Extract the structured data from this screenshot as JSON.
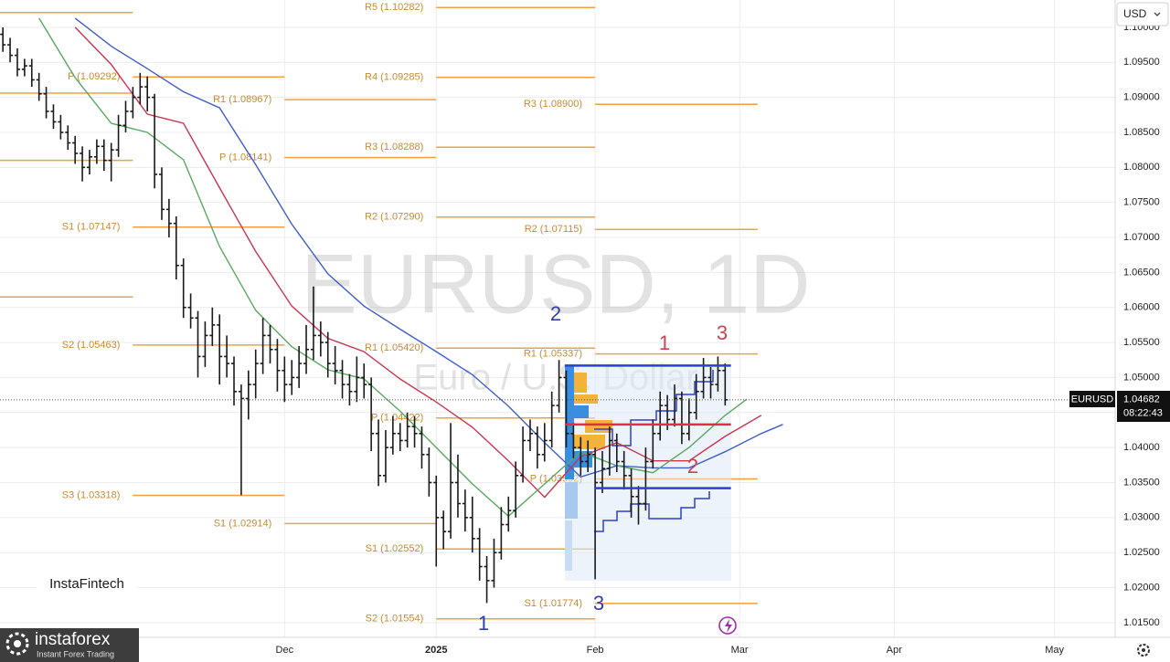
{
  "chart_data": {
    "type": "ohlc",
    "title": "EURUSD, 1D",
    "subtitle": "Euro / U.S. Dollar",
    "currency": "USD",
    "bar_color": "#1a1a1a",
    "grid": true,
    "xlim": [
      -0.4,
      154
    ],
    "xticks": [
      {
        "value": 39,
        "label": "Dec"
      },
      {
        "value": 60,
        "label": "2025"
      },
      {
        "value": 82,
        "label": "Feb"
      },
      {
        "value": 102,
        "label": "Mar"
      },
      {
        "value": 123.4,
        "label": "Apr"
      },
      {
        "value": 145.6,
        "label": "May"
      }
    ],
    "ylim": [
      1.0129,
      1.1039
    ],
    "yticks": [
      {
        "value": 1.015,
        "label": "1.01500"
      },
      {
        "value": 1.02,
        "label": "1.02000"
      },
      {
        "value": 1.025,
        "label": "1.02500"
      },
      {
        "value": 1.03,
        "label": "1.03000"
      },
      {
        "value": 1.035,
        "label": "1.03500"
      },
      {
        "value": 1.04,
        "label": "1.04000"
      },
      {
        "value": 1.045,
        "label": "1.04500"
      },
      {
        "value": 1.05,
        "label": "1.05000"
      },
      {
        "value": 1.055,
        "label": "1.05500"
      },
      {
        "value": 1.06,
        "label": "1.06000"
      },
      {
        "value": 1.065,
        "label": "1.06500"
      },
      {
        "value": 1.07,
        "label": "1.07000"
      },
      {
        "value": 1.075,
        "label": "1.07500"
      },
      {
        "value": 1.08,
        "label": "1.08000"
      },
      {
        "value": 1.085,
        "label": "1.08500"
      },
      {
        "value": 1.09,
        "label": "1.09000"
      },
      {
        "value": 1.095,
        "label": "1.09500"
      },
      {
        "value": 1.1,
        "label": "1.10000"
      }
    ],
    "bars": [
      [
        1.099,
        1.1,
        1.0965,
        1.0975
      ],
      [
        1.0975,
        1.0985,
        1.095,
        1.096
      ],
      [
        1.096,
        1.097,
        1.093,
        1.094
      ],
      [
        1.094,
        1.0955,
        1.093,
        1.0945
      ],
      [
        1.0945,
        1.0955,
        1.0915,
        1.0925
      ],
      [
        1.0925,
        1.0935,
        1.0895,
        1.0905
      ],
      [
        1.0905,
        1.0915,
        1.087,
        1.088
      ],
      [
        1.088,
        1.089,
        1.0855,
        1.0865
      ],
      [
        1.0865,
        1.0875,
        1.084,
        1.085
      ],
      [
        1.085,
        1.086,
        1.0825,
        1.0835
      ],
      [
        1.0835,
        1.0845,
        1.0805,
        1.082
      ],
      [
        1.082,
        1.083,
        1.078,
        1.08
      ],
      [
        1.08,
        1.0825,
        1.079,
        1.0815
      ],
      [
        1.0815,
        1.084,
        1.0805,
        1.083
      ],
      [
        1.083,
        1.084,
        1.0795,
        1.081
      ],
      [
        1.081,
        1.0835,
        1.078,
        1.0825
      ],
      [
        1.0825,
        1.0875,
        1.0815,
        1.086
      ],
      [
        1.086,
        1.0895,
        1.085,
        1.088
      ],
      [
        1.088,
        1.0915,
        1.087,
        1.09
      ],
      [
        1.09,
        1.0935,
        1.089,
        1.0915
      ],
      [
        1.0915,
        1.093,
        1.088,
        1.09
      ],
      [
        1.09,
        1.0905,
        1.077,
        1.079
      ],
      [
        1.079,
        1.08,
        1.0725,
        1.074
      ],
      [
        1.074,
        1.0755,
        1.07,
        1.072
      ],
      [
        1.072,
        1.073,
        1.064,
        1.066
      ],
      [
        1.066,
        1.067,
        1.0585,
        1.06
      ],
      [
        1.06,
        1.062,
        1.057,
        1.0585
      ],
      [
        1.0585,
        1.0595,
        1.05,
        1.053
      ],
      [
        1.053,
        1.058,
        1.0515,
        1.056
      ],
      [
        1.056,
        1.06,
        1.0545,
        1.0575
      ],
      [
        1.0575,
        1.059,
        1.049,
        1.053
      ],
      [
        1.053,
        1.056,
        1.05,
        1.052
      ],
      [
        1.052,
        1.053,
        1.046,
        1.048
      ],
      [
        1.048,
        1.049,
        1.0332,
        1.047
      ],
      [
        1.047,
        1.051,
        1.044,
        1.049
      ],
      [
        1.049,
        1.054,
        1.047,
        1.052
      ],
      [
        1.052,
        1.0585,
        1.0505,
        1.056
      ],
      [
        1.056,
        1.0575,
        1.052,
        1.054
      ],
      [
        1.054,
        1.0555,
        1.048,
        1.051
      ],
      [
        1.051,
        1.053,
        1.0465,
        1.049
      ],
      [
        1.049,
        1.0525,
        1.0475,
        1.05
      ],
      [
        1.05,
        1.0545,
        1.0485,
        1.052
      ],
      [
        1.052,
        1.0575,
        1.0505,
        1.054
      ],
      [
        1.054,
        1.063,
        1.0525,
        1.056
      ],
      [
        1.056,
        1.058,
        1.053,
        1.055
      ],
      [
        1.055,
        1.0565,
        1.05,
        1.052
      ],
      [
        1.052,
        1.0545,
        1.049,
        1.051
      ],
      [
        1.051,
        1.0525,
        1.047,
        1.049
      ],
      [
        1.049,
        1.0505,
        1.046,
        1.048
      ],
      [
        1.048,
        1.053,
        1.0465,
        1.05
      ],
      [
        1.05,
        1.052,
        1.047,
        1.049
      ],
      [
        1.049,
        1.05,
        1.0395,
        1.042
      ],
      [
        1.042,
        1.044,
        1.0345,
        1.036
      ],
      [
        1.036,
        1.0425,
        1.035,
        1.04
      ],
      [
        1.04,
        1.0445,
        1.039,
        1.042
      ],
      [
        1.042,
        1.0435,
        1.0395,
        1.041
      ],
      [
        1.041,
        1.045,
        1.04,
        1.043
      ],
      [
        1.043,
        1.0445,
        1.04,
        1.042
      ],
      [
        1.042,
        1.043,
        1.037,
        1.039
      ],
      [
        1.039,
        1.04,
        1.033,
        1.035
      ],
      [
        1.035,
        1.036,
        1.023,
        1.03
      ],
      [
        1.03,
        1.031,
        1.0255,
        1.028
      ],
      [
        1.028,
        1.0435,
        1.027,
        1.035
      ],
      [
        1.035,
        1.039,
        1.03,
        1.032
      ],
      [
        1.032,
        1.034,
        1.028,
        1.03
      ],
      [
        1.03,
        1.033,
        1.025,
        1.027
      ],
      [
        1.027,
        1.0285,
        1.021,
        1.023
      ],
      [
        1.023,
        1.0245,
        1.0178,
        1.021
      ],
      [
        1.021,
        1.027,
        1.02,
        1.025
      ],
      [
        1.025,
        1.0315,
        1.024,
        1.029
      ],
      [
        1.029,
        1.033,
        1.028,
        1.031
      ],
      [
        1.031,
        1.038,
        1.03,
        1.036
      ],
      [
        1.036,
        1.043,
        1.035,
        1.041
      ],
      [
        1.041,
        1.044,
        1.0395,
        1.042
      ],
      [
        1.042,
        1.043,
        1.037,
        1.039
      ],
      [
        1.039,
        1.0435,
        1.038,
        1.041
      ],
      [
        1.041,
        1.048,
        1.04,
        1.046
      ],
      [
        1.046,
        1.0525,
        1.045,
        1.05
      ],
      [
        1.05,
        1.051,
        1.04,
        1.042
      ],
      [
        1.042,
        1.0435,
        1.0385,
        1.04
      ],
      [
        1.04,
        1.0415,
        1.036,
        1.038
      ],
      [
        1.038,
        1.041,
        1.0365,
        1.039
      ],
      [
        1.039,
        1.04,
        1.0212,
        1.035
      ],
      [
        1.035,
        1.0395,
        1.0335,
        1.037
      ],
      [
        1.037,
        1.043,
        1.036,
        1.041
      ],
      [
        1.041,
        1.042,
        1.0365,
        1.038
      ],
      [
        1.038,
        1.0395,
        1.034,
        1.036
      ],
      [
        1.036,
        1.037,
        1.03,
        1.033
      ],
      [
        1.033,
        1.0345,
        1.029,
        1.032
      ],
      [
        1.032,
        1.04,
        1.031,
        1.038
      ],
      [
        1.038,
        1.044,
        1.037,
        1.042
      ],
      [
        1.042,
        1.048,
        1.041,
        1.046
      ],
      [
        1.046,
        1.0475,
        1.0425,
        1.044
      ],
      [
        1.044,
        1.049,
        1.043,
        1.047
      ],
      [
        1.047,
        1.048,
        1.0405,
        1.042
      ],
      [
        1.042,
        1.047,
        1.041,
        1.045
      ],
      [
        1.045,
        1.0505,
        1.044,
        1.048
      ],
      [
        1.048,
        1.0528,
        1.047,
        1.05
      ],
      [
        1.05,
        1.0515,
        1.047,
        1.049
      ],
      [
        1.049,
        1.053,
        1.048,
        1.051
      ],
      [
        1.051,
        1.052,
        1.046,
        1.04682
      ]
    ],
    "moving_averages": [
      {
        "color": "#3f5fc8",
        "x": [
          10,
          15,
          20,
          25,
          30,
          35,
          40,
          45,
          50,
          55,
          60,
          65,
          70,
          75,
          80,
          85,
          90,
          95,
          100,
          105,
          108
        ],
        "values": [
          1.1013,
          1.0973,
          1.0941,
          1.0908,
          1.0885,
          1.0804,
          1.0719,
          1.0648,
          1.0602,
          1.0569,
          1.0537,
          1.0504,
          1.0459,
          1.0407,
          1.0358,
          1.0374,
          1.0371,
          1.0371,
          1.0394,
          1.042,
          1.0433
        ]
      },
      {
        "color": "#c8364f",
        "x": [
          10,
          15,
          20,
          25,
          30,
          35,
          40,
          45,
          50,
          55,
          60,
          65,
          70,
          75,
          80,
          85,
          90,
          95,
          100,
          105
        ],
        "values": [
          1.1,
          1.0947,
          1.0876,
          1.0863,
          1.0771,
          1.068,
          1.0602,
          1.0556,
          1.0537,
          1.0498,
          1.0465,
          1.0429,
          1.0381,
          1.0329,
          1.0387,
          1.0407,
          1.0381,
          1.0381,
          1.0416,
          1.0446
        ]
      },
      {
        "color": "#5aa860",
        "x": [
          5,
          10,
          15,
          20,
          25,
          30,
          35,
          40,
          45,
          50,
          55,
          60,
          65,
          70,
          75,
          80,
          85,
          90,
          95,
          100,
          103
        ],
        "values": [
          1.1013,
          1.0928,
          1.0863,
          1.085,
          1.0811,
          1.0687,
          1.0596,
          1.0544,
          1.0511,
          1.0498,
          1.0452,
          1.04,
          1.0348,
          1.0302,
          1.0348,
          1.0394,
          1.0374,
          1.0364,
          1.04,
          1.0446,
          1.0469
        ]
      }
    ],
    "pivot_color": "#f0a040",
    "pivot_text_color": "#c98a2e",
    "pivots": [
      {
        "x": [
          -0.4,
          18
        ],
        "levels": [
          {
            "value": 1.1021
          },
          {
            "value": 1.0906
          },
          {
            "value": 1.081
          },
          {
            "value": 1.0615
          }
        ]
      },
      {
        "x": [
          18,
          39
        ],
        "levels": [
          {
            "value": 1.09292,
            "label": "P (1.09292)"
          },
          {
            "value": 1.07147,
            "label": "S1 (1.07147)"
          },
          {
            "value": 1.05463,
            "label": "S2 (1.05463)"
          },
          {
            "value": 1.03318,
            "label": "S3 (1.03318)"
          }
        ]
      },
      {
        "x": [
          39,
          60
        ],
        "levels": [
          {
            "value": 1.08967,
            "label": "R1 (1.08967)"
          },
          {
            "value": 1.08141,
            "label": "P (1.08141)"
          },
          {
            "value": 1.02914,
            "label": "S1 (1.02914)"
          }
        ]
      },
      {
        "x": [
          60,
          82
        ],
        "levels": [
          {
            "value": 1.10282,
            "label": "R5 (1.10282)"
          },
          {
            "value": 1.09285,
            "label": "R4 (1.09285)"
          },
          {
            "value": 1.08288,
            "label": "R3 (1.08288)"
          },
          {
            "value": 1.0729,
            "label": "R2 (1.07290)"
          },
          {
            "value": 1.0542,
            "label": "R1 (1.05420)"
          },
          {
            "value": 1.04422,
            "label": "P (1.04422)"
          },
          {
            "value": 1.02552,
            "label": "S1 (1.02552)"
          },
          {
            "value": 1.01554,
            "label": "S2 (1.01554)"
          }
        ]
      },
      {
        "x": [
          82,
          104.5
        ],
        "levels": [
          {
            "value": 1.089,
            "label": "R3 (1.08900)"
          },
          {
            "value": 1.07115,
            "label": "R2 (1.07115)"
          },
          {
            "value": 1.05337,
            "label": "R1 (1.05337)"
          },
          {
            "value": 1.03552,
            "label": "P (1.03552)"
          },
          {
            "value": 1.01774,
            "label": "S1 (1.01774)"
          }
        ]
      }
    ],
    "lines": [
      {
        "color": "#2b3fd0",
        "value": 1.0517,
        "x": [
          77.8,
          100.8
        ]
      },
      {
        "color": "#e03040",
        "value": 1.0433,
        "x": [
          77.8,
          100.8
        ]
      },
      {
        "color": "#2b3fd0",
        "value": 1.0342,
        "x": [
          81.9,
          100.8
        ]
      }
    ],
    "last_price": {
      "symbol": "EURUSD",
      "value": 1.04682,
      "countdown": "08:22:43"
    },
    "wave_labels": [
      {
        "text": "1",
        "color": "#3040a8"
      },
      {
        "text": "2",
        "color": "#3040a8"
      },
      {
        "text": "3",
        "color": "#3040a8"
      },
      {
        "text": "1",
        "color": "#d0404f"
      },
      {
        "text": "2",
        "color": "#d0404f"
      },
      {
        "text": "3",
        "color": "#d0404f"
      }
    ]
  },
  "branding": {
    "widget": "InstaFintech",
    "logo": "instaforex",
    "tagline": "Instant Forex Trading"
  }
}
